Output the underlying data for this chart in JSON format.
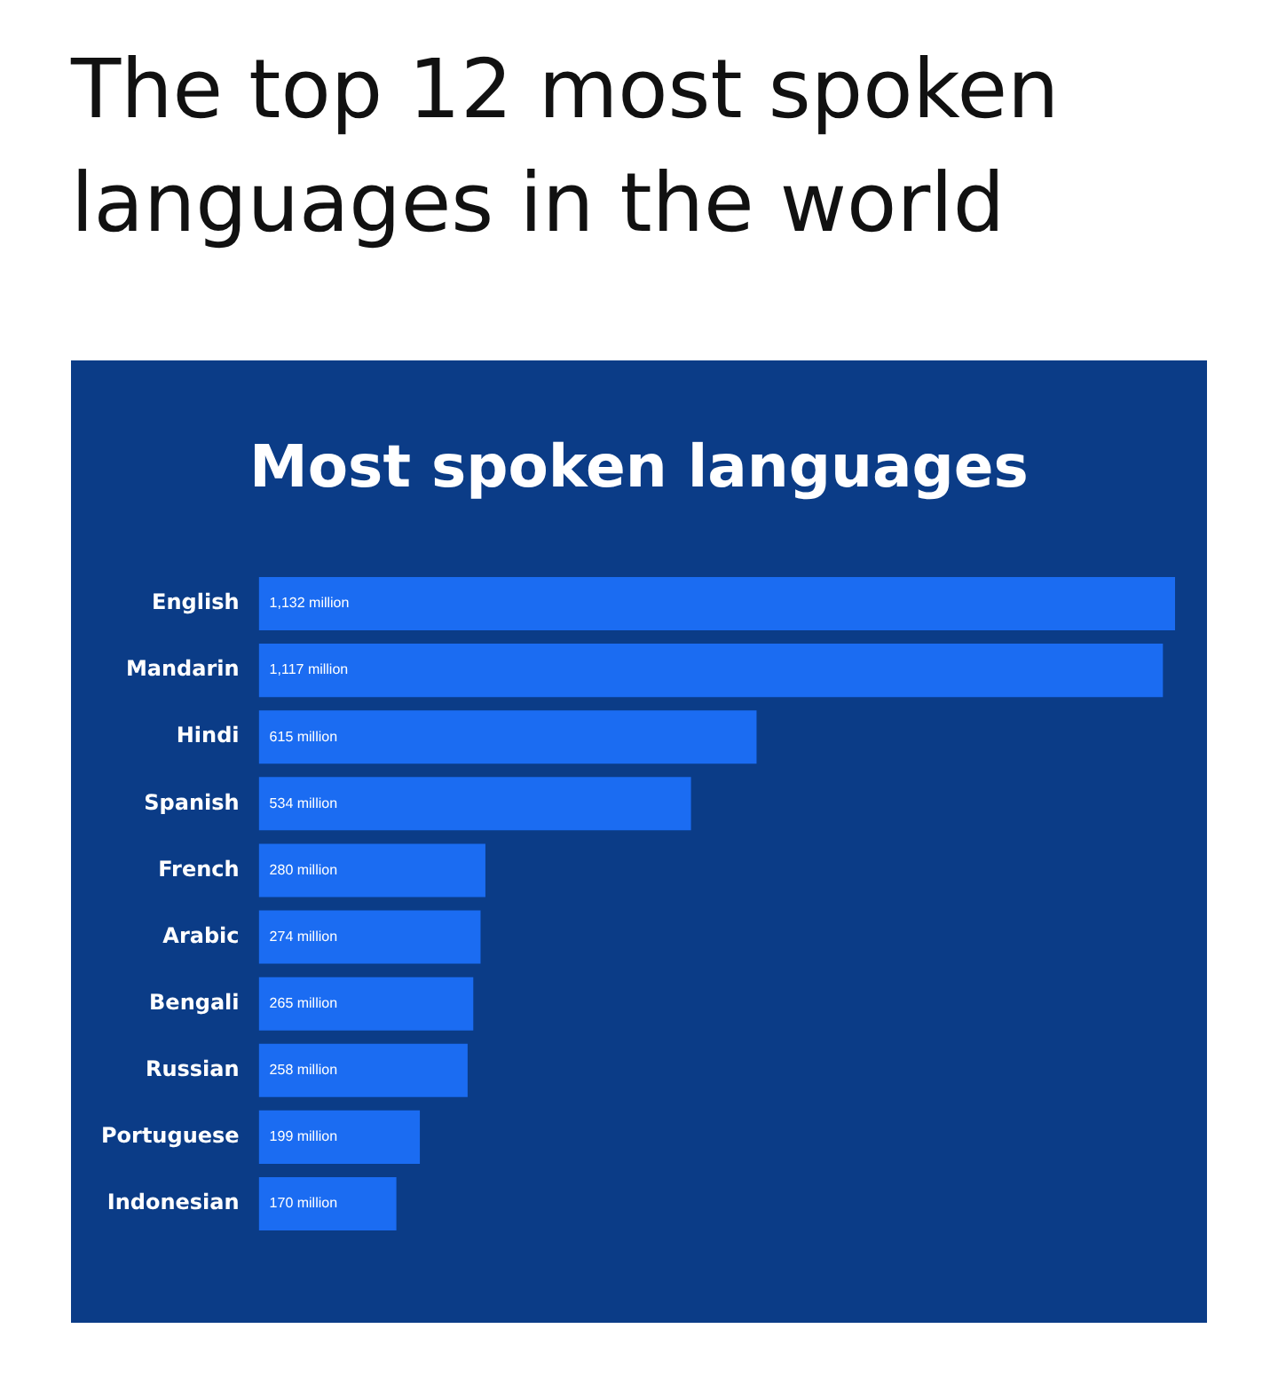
{
  "chart_data": {
    "type": "bar",
    "orientation": "horizontal",
    "title": "The top 12 most spoken languages in the world",
    "subtitle": "Most spoken languages",
    "categories": [
      "English",
      "Mandarin",
      "Hindi",
      "Spanish",
      "French",
      "Arabic",
      "Bengali",
      "Russian",
      "Portuguese",
      "Indonesian"
    ],
    "values": [
      1132,
      1117,
      615,
      534,
      280,
      274,
      265,
      258,
      199,
      170
    ],
    "value_labels": [
      "1,132 million",
      "1,117 million",
      "615 million",
      "534 million",
      "280 million",
      "274 million",
      "265 million",
      "258 million",
      "199 million",
      "170 million"
    ],
    "color": "#1b6cf2",
    "legend": false,
    "tick_labels": "y"
  }
}
